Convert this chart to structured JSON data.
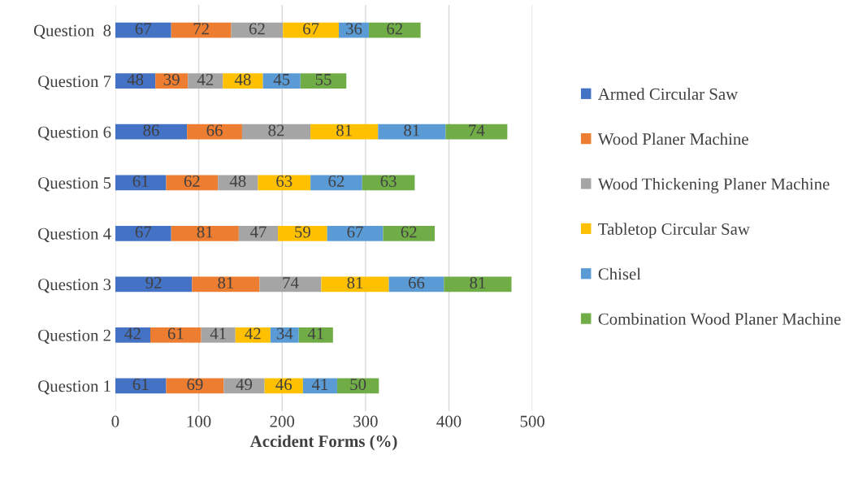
{
  "chart_data": {
    "type": "bar",
    "orientation": "horizontal",
    "stacked": true,
    "xlabel": "Accident Forms (%)",
    "categories": [
      "Question  8",
      "Question 7",
      "Question 6",
      "Question 5",
      "Question 4",
      "Question 3",
      "Question 2",
      "Question 1"
    ],
    "series": [
      {
        "name": "Armed Circular Saw",
        "color": "#4472c4",
        "values": [
          67,
          48,
          86,
          61,
          67,
          92,
          42,
          61
        ]
      },
      {
        "name": "Wood Planer Machine",
        "color": "#ed7d31",
        "values": [
          72,
          39,
          66,
          62,
          81,
          81,
          61,
          69
        ]
      },
      {
        "name": "Wood Thickening Planer Machine",
        "color": "#a5a5a5",
        "values": [
          62,
          42,
          82,
          48,
          47,
          74,
          41,
          49
        ]
      },
      {
        "name": "Tabletop Circular Saw",
        "color": "#ffc000",
        "values": [
          67,
          48,
          81,
          63,
          59,
          81,
          42,
          46
        ]
      },
      {
        "name": "Chisel",
        "color": "#5b9bd5",
        "values": [
          36,
          45,
          81,
          62,
          67,
          66,
          34,
          41
        ]
      },
      {
        "name": "Combination Wood Planer Machine",
        "color": "#70ad47",
        "values": [
          62,
          55,
          74,
          63,
          62,
          81,
          41,
          50
        ]
      }
    ],
    "xlim": [
      0,
      500
    ],
    "xticks": [
      0,
      100,
      200,
      300,
      400,
      500
    ],
    "grid": "x",
    "legend": "right",
    "data_labels": true
  }
}
